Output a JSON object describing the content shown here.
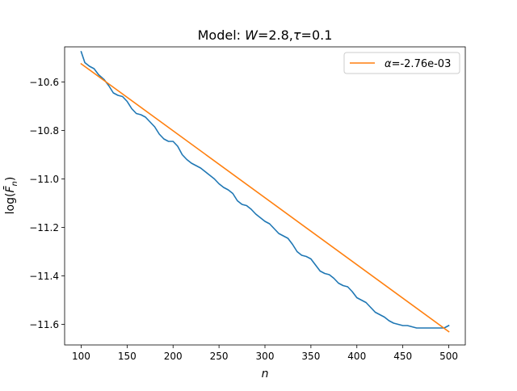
{
  "chart_data": {
    "type": "line",
    "title_prefix": "Model: ",
    "title_w_symbol": "W",
    "title_w_value": "=2.8,",
    "title_tau_symbol": "τ",
    "title_tau_value": "=0.1",
    "xlabel": "n",
    "ylabel_prefix": "log(",
    "ylabel_symbol": "F̄",
    "ylabel_sub": "n",
    "ylabel_suffix": ")",
    "xlim": [
      82,
      518
    ],
    "ylim": [
      -11.685,
      -10.455
    ],
    "xticks": [
      100,
      150,
      200,
      250,
      300,
      350,
      400,
      450,
      500
    ],
    "xtick_labels": [
      "100",
      "150",
      "200",
      "250",
      "300",
      "350",
      "400",
      "450",
      "500"
    ],
    "yticks": [
      -10.6,
      -10.8,
      -11.0,
      -11.2,
      -11.4,
      -11.6
    ],
    "ytick_labels": [
      "−10.6",
      "−10.8",
      "−11.0",
      "−11.2",
      "−11.4",
      "−11.6"
    ],
    "grid": false,
    "legend_position": "top-right",
    "series": [
      {
        "color": "#1f77b4",
        "x": [
          100,
          104,
          109,
          114,
          119,
          125,
          130,
          135,
          140,
          145,
          150,
          155,
          160,
          165,
          170,
          175,
          180,
          185,
          190,
          195,
          200,
          205,
          210,
          215,
          220,
          225,
          230,
          235,
          240,
          245,
          250,
          255,
          260,
          265,
          270,
          275,
          280,
          285,
          290,
          295,
          300,
          305,
          310,
          315,
          320,
          325,
          330,
          335,
          340,
          345,
          350,
          355,
          360,
          365,
          370,
          375,
          380,
          385,
          390,
          395,
          400,
          405,
          410,
          415,
          420,
          425,
          430,
          435,
          440,
          445,
          450,
          455,
          460,
          465,
          470,
          475,
          480,
          485,
          490,
          495,
          500
        ],
        "y": [
          -10.475,
          -10.52,
          -10.535,
          -10.545,
          -10.57,
          -10.59,
          -10.615,
          -10.645,
          -10.655,
          -10.66,
          -10.68,
          -10.71,
          -10.73,
          -10.735,
          -10.745,
          -10.765,
          -10.785,
          -10.815,
          -10.835,
          -10.845,
          -10.845,
          -10.865,
          -10.9,
          -10.92,
          -10.935,
          -10.945,
          -10.955,
          -10.97,
          -10.985,
          -11.0,
          -11.02,
          -11.035,
          -11.045,
          -11.06,
          -11.09,
          -11.105,
          -11.11,
          -11.125,
          -11.145,
          -11.16,
          -11.175,
          -11.185,
          -11.205,
          -11.225,
          -11.235,
          -11.245,
          -11.27,
          -11.3,
          -11.315,
          -11.32,
          -11.33,
          -11.355,
          -11.38,
          -11.39,
          -11.395,
          -11.41,
          -11.43,
          -11.44,
          -11.445,
          -11.465,
          -11.49,
          -11.5,
          -11.51,
          -11.53,
          -11.55,
          -11.56,
          -11.57,
          -11.585,
          -11.595,
          -11.6,
          -11.605,
          -11.605,
          -11.61,
          -11.615,
          -11.615,
          -11.615,
          -11.615,
          -11.615,
          -11.615,
          -11.615,
          -11.605
        ]
      },
      {
        "name": "α=-2.76e-03",
        "name_symbol": "α",
        "name_rest": "=-2.76e-03",
        "color": "#ff7f0e",
        "x": [
          100,
          500
        ],
        "y": [
          -10.525,
          -11.63
        ]
      }
    ]
  }
}
